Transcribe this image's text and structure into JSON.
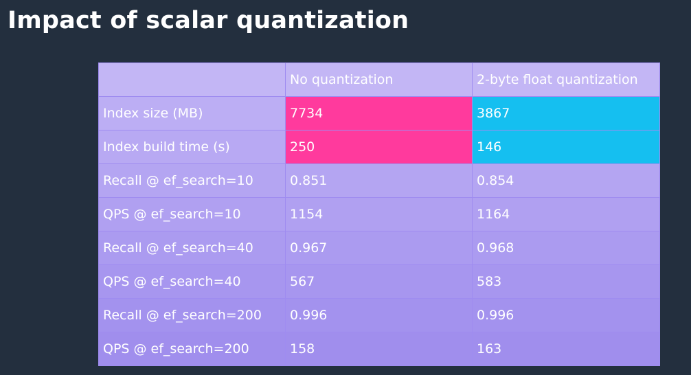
{
  "slide": {
    "title": "Impact of scalar quantization"
  },
  "table": {
    "columns": [
      "",
      "No quantization",
      "2-byte float quantization"
    ],
    "rows": [
      {
        "metric": "Index size (MB)",
        "no_quant": "7734",
        "float_quant": "3867"
      },
      {
        "metric": "Index build time (s)",
        "no_quant": "250",
        "float_quant": "146"
      },
      {
        "metric": "Recall @ ef_search=10",
        "no_quant": "0.851",
        "float_quant": "0.854"
      },
      {
        "metric": "QPS @ ef_search=10",
        "no_quant": "1154",
        "float_quant": "1164"
      },
      {
        "metric": "Recall @ ef_search=40",
        "no_quant": "0.967",
        "float_quant": "0.968"
      },
      {
        "metric": "QPS @ ef_search=40",
        "no_quant": "567",
        "float_quant": "583"
      },
      {
        "metric": "Recall @ ef_search=200",
        "no_quant": "0.996",
        "float_quant": "0.996"
      },
      {
        "metric": "QPS @ ef_search=200",
        "no_quant": "158",
        "float_quant": "163"
      }
    ]
  },
  "colors": {
    "background": "#232f3e",
    "table_purple": "#b09ff0",
    "highlight_no_quant": "#ff3a9d",
    "highlight_float_quant": "#15bff0"
  }
}
